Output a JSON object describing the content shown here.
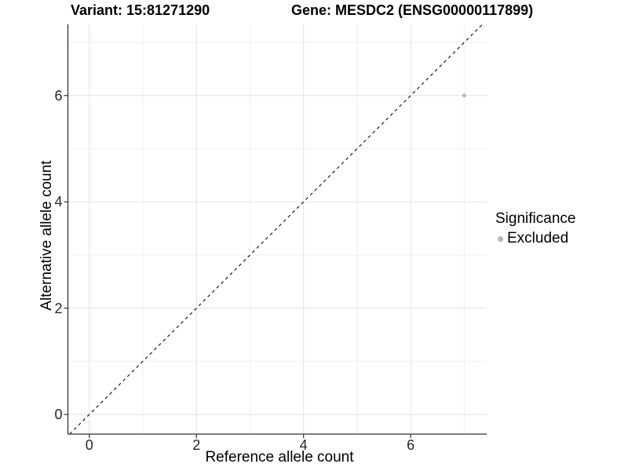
{
  "chart_data": {
    "type": "scatter",
    "title_left": "Variant: 15:81271290",
    "title_right": "Gene: MESDC2 (ENSG00000117899)",
    "xlabel": "Reference allele count",
    "ylabel": "Alternative allele count",
    "xlim": [
      -0.4,
      7.42
    ],
    "ylim": [
      -0.37,
      7.34
    ],
    "x_ticks": [
      0,
      2,
      4,
      6
    ],
    "y_ticks": [
      0,
      2,
      4,
      6
    ],
    "x_minor_ticks": [
      1,
      3,
      5,
      7
    ],
    "y_minor_ticks": [
      1,
      3,
      5,
      7
    ],
    "x_tick_labels": [
      "0",
      "2",
      "4",
      "6"
    ],
    "y_tick_labels": [
      "0",
      "2",
      "4",
      "6"
    ],
    "grid": true,
    "points": [
      {
        "x": 7,
        "y": 6,
        "series": "Excluded"
      }
    ],
    "reference_line": {
      "kind": "identity",
      "slope": 1,
      "intercept": 0,
      "style": "dashed"
    },
    "legend": {
      "title": "Significance",
      "position": "right",
      "items": [
        {
          "label": "Excluded",
          "color": "#b3b3b3"
        }
      ]
    },
    "colors": {
      "point": "#b3b3b3",
      "grid_major": "#e4e4e4",
      "grid_minor": "#efefef",
      "axis": "#333333",
      "reference_line": "#1a1a1a",
      "background": "#ffffff"
    }
  }
}
